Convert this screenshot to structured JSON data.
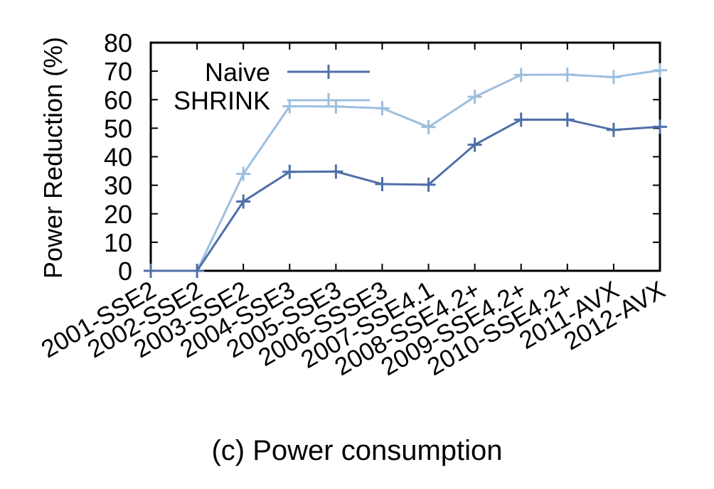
{
  "chart_data": {
    "type": "line",
    "ylabel": "Power Reduction (%)",
    "xlabel": "",
    "ylim": [
      0,
      80
    ],
    "yticks": [
      "0",
      "10",
      "20",
      "30",
      "40",
      "50",
      "60",
      "70",
      "80"
    ],
    "categories": [
      "2001-SSE2",
      "2002-SSE2",
      "2003-SSE2",
      "2004-SSE3",
      "2005-SSE3",
      "2006-SSSE3",
      "2007-SSE4.1",
      "2008-SSE4.2+",
      "2009-SSE4.2+",
      "2010-SSE4.2+",
      "2011-AVX",
      "2012-AVX"
    ],
    "legend_position": "top-left",
    "grid": false,
    "series": [
      {
        "name": "Naive",
        "color": "#4f6fa8",
        "values": [
          0,
          0,
          24.3,
          34.7,
          34.8,
          30.4,
          30.2,
          44.2,
          53.0,
          53.0,
          49.4,
          50.5
        ]
      },
      {
        "name": "SHRINK",
        "color": "#9dbfde",
        "values": [
          0,
          0,
          34.0,
          57.7,
          57.6,
          57.0,
          50.4,
          61.0,
          68.7,
          68.8,
          67.9,
          70.3
        ]
      }
    ]
  },
  "caption": "(c) Power consumption"
}
